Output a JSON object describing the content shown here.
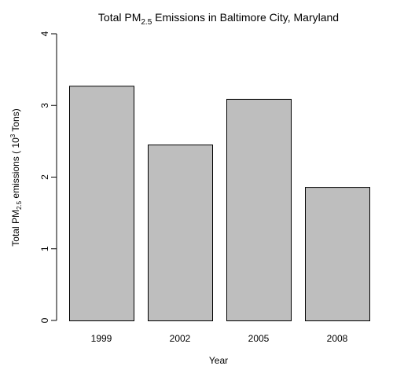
{
  "chart_data": {
    "type": "bar",
    "title": {
      "main_before": "Total PM",
      "subscript": "2.5",
      "main_after": " Emissions in Baltimore City, Maryland"
    },
    "xlabel": "Year",
    "ylabel": {
      "part1": "Total PM",
      "subscript": "2.5",
      "part2": " emissions ( 10",
      "superscript": "3",
      "part3": " Tons)"
    },
    "categories": [
      "1999",
      "2002",
      "2005",
      "2008"
    ],
    "values": [
      3.274,
      2.454,
      3.091,
      1.862
    ],
    "ylim": [
      0,
      4
    ],
    "yticks": [
      "0",
      "1",
      "2",
      "3",
      "4"
    ],
    "bar_color": "#bebebe",
    "bar_border_color": "#000000",
    "grid": false,
    "legend": "none"
  }
}
